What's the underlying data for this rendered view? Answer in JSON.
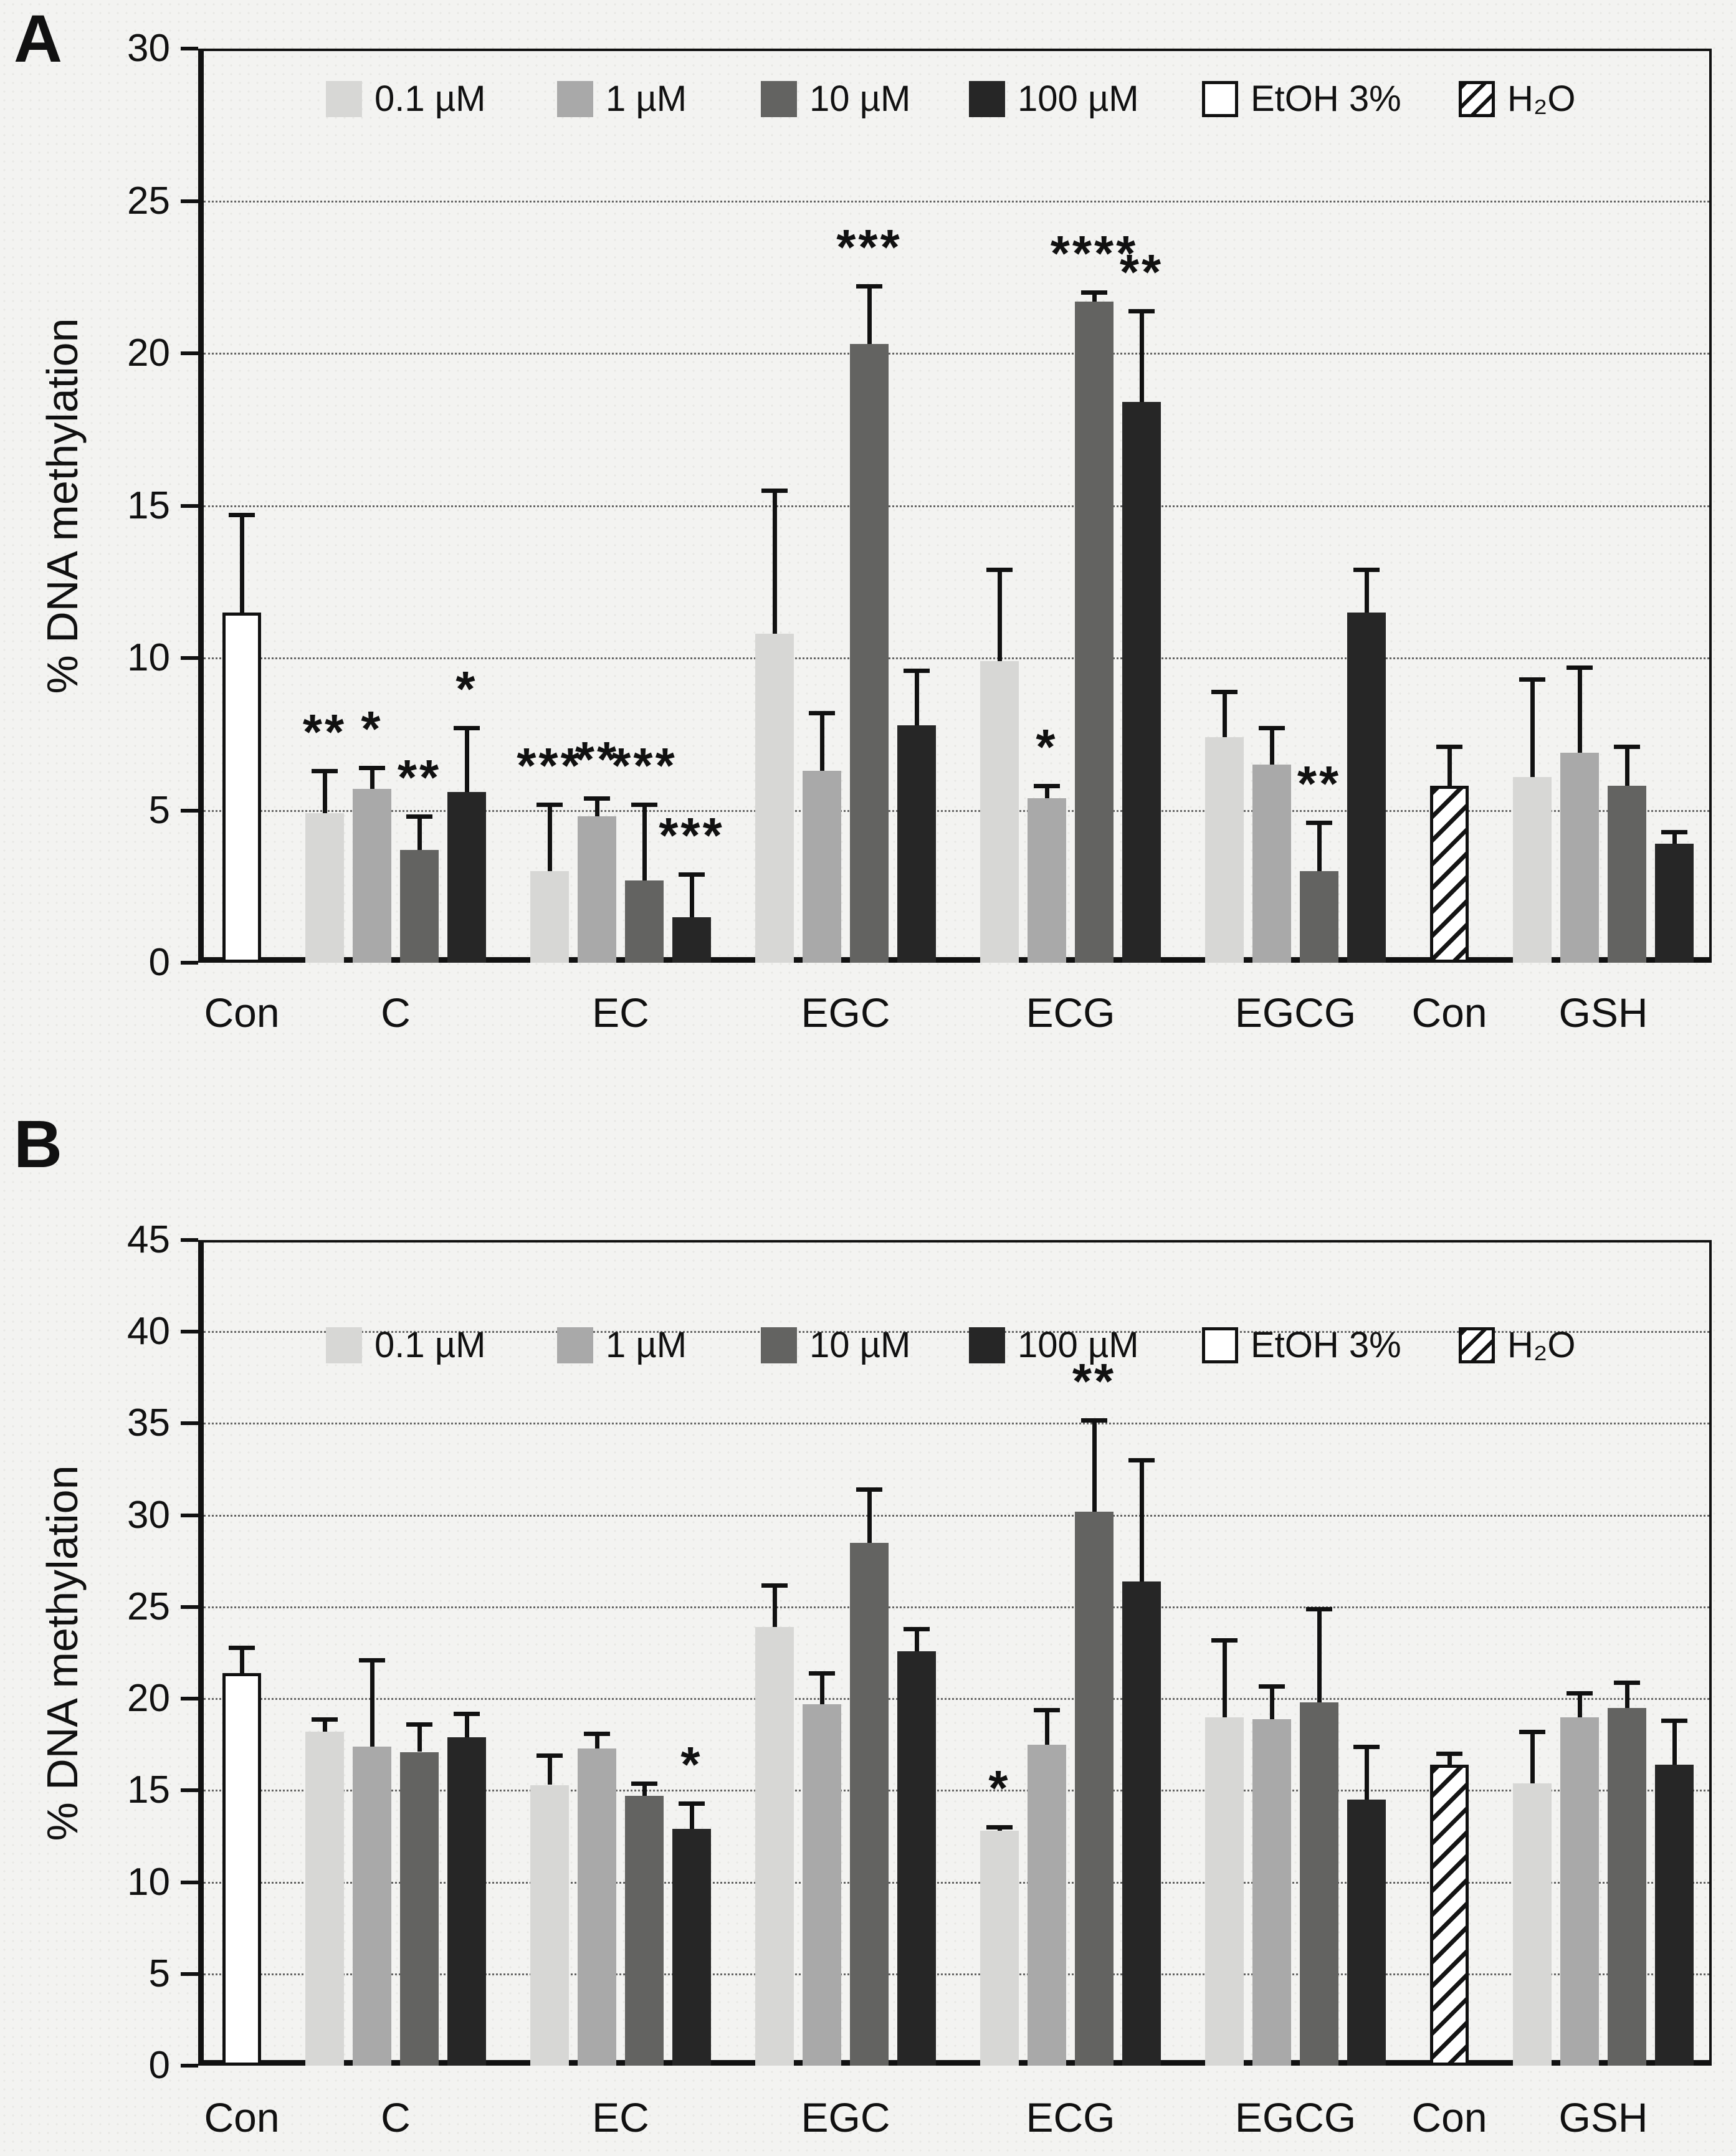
{
  "figure": {
    "background": "#f3f3f1",
    "panel_a_letter": "A",
    "panel_b_letter": "B",
    "ylabel": "% DNA methylation"
  },
  "chart_data": {
    "type": "bar",
    "ylabel": "% DNA methylation",
    "grid": "dotted horizontal",
    "legend_position": "top inside plot",
    "legend": [
      {
        "label": "0.1 µM",
        "style": "fill",
        "color": "#d7d7d5"
      },
      {
        "label": "1 µM",
        "style": "fill",
        "color": "#a9a9a9"
      },
      {
        "label": "10 µM",
        "style": "fill",
        "color": "#636361"
      },
      {
        "label": "100 µM",
        "style": "fill",
        "color": "#262626"
      },
      {
        "label": "EtOH 3%",
        "style": "open",
        "color": "#ffffff"
      },
      {
        "label": "H₂O",
        "style": "hatch",
        "color": "#ffffff"
      }
    ],
    "panels": [
      {
        "label": "A",
        "ylim": [
          0,
          30
        ],
        "ystep": 5,
        "yticks": [
          "0",
          "5",
          "10",
          "15",
          "20",
          "25",
          "30"
        ],
        "groups": [
          {
            "label": "Con",
            "bars": [
              {
                "series": "EtOH 3%",
                "value": 11.5,
                "err_top": 14.7,
                "sig": ""
              }
            ]
          },
          {
            "label": "C",
            "bars": [
              {
                "series": "0.1 µM",
                "value": 4.9,
                "err_top": 6.3,
                "sig": "**"
              },
              {
                "series": "1 µM",
                "value": 5.7,
                "err_top": 6.4,
                "sig": "*"
              },
              {
                "series": "10 µM",
                "value": 3.7,
                "err_top": 4.8,
                "sig": "**"
              },
              {
                "series": "100 µM",
                "value": 5.6,
                "err_top": 7.7,
                "sig": "*"
              }
            ]
          },
          {
            "label": "EC",
            "bars": [
              {
                "series": "0.1 µM",
                "value": 3.0,
                "err_top": 5.2,
                "sig": "***"
              },
              {
                "series": "1 µM",
                "value": 4.8,
                "err_top": 5.4,
                "sig": "**"
              },
              {
                "series": "10 µM",
                "value": 2.7,
                "err_top": 5.2,
                "sig": "***"
              },
              {
                "series": "100 µM",
                "value": 1.5,
                "err_top": 2.9,
                "sig": "***"
              }
            ]
          },
          {
            "label": "EGC",
            "bars": [
              {
                "series": "0.1 µM",
                "value": 10.8,
                "err_top": 15.5,
                "sig": ""
              },
              {
                "series": "1 µM",
                "value": 6.3,
                "err_top": 8.2,
                "sig": ""
              },
              {
                "series": "10 µM",
                "value": 20.3,
                "err_top": 22.2,
                "sig": "***"
              },
              {
                "series": "100 µM",
                "value": 7.8,
                "err_top": 9.6,
                "sig": ""
              }
            ]
          },
          {
            "label": "ECG",
            "bars": [
              {
                "series": "0.1 µM",
                "value": 9.9,
                "err_top": 12.9,
                "sig": ""
              },
              {
                "series": "1 µM",
                "value": 5.4,
                "err_top": 5.8,
                "sig": "*"
              },
              {
                "series": "10 µM",
                "value": 21.7,
                "err_top": 22.0,
                "sig": "****"
              },
              {
                "series": "100 µM",
                "value": 18.4,
                "err_top": 21.4,
                "sig": "**"
              }
            ]
          },
          {
            "label": "EGCG",
            "bars": [
              {
                "series": "0.1 µM",
                "value": 7.4,
                "err_top": 8.9,
                "sig": ""
              },
              {
                "series": "1 µM",
                "value": 6.5,
                "err_top": 7.7,
                "sig": ""
              },
              {
                "series": "10 µM",
                "value": 3.0,
                "err_top": 4.6,
                "sig": "**"
              },
              {
                "series": "100 µM",
                "value": 11.5,
                "err_top": 12.9,
                "sig": ""
              }
            ]
          },
          {
            "label": "Con",
            "bars": [
              {
                "series": "H₂O",
                "value": 5.8,
                "err_top": 7.1,
                "sig": ""
              }
            ]
          },
          {
            "label": "GSH",
            "bars": [
              {
                "series": "0.1 µM",
                "value": 6.1,
                "err_top": 9.3,
                "sig": ""
              },
              {
                "series": "1 µM",
                "value": 6.9,
                "err_top": 9.7,
                "sig": ""
              },
              {
                "series": "10 µM",
                "value": 5.8,
                "err_top": 7.1,
                "sig": ""
              },
              {
                "series": "100 µM",
                "value": 3.9,
                "err_top": 4.3,
                "sig": ""
              }
            ]
          }
        ]
      },
      {
        "label": "B",
        "ylim": [
          0,
          45
        ],
        "ystep": 5,
        "yticks": [
          "0",
          "5",
          "10",
          "15",
          "20",
          "25",
          "30",
          "35",
          "40",
          "45"
        ],
        "groups": [
          {
            "label": "Con",
            "bars": [
              {
                "series": "EtOH 3%",
                "value": 21.4,
                "err_top": 22.8,
                "sig": ""
              }
            ]
          },
          {
            "label": "C",
            "bars": [
              {
                "series": "0.1 µM",
                "value": 18.2,
                "err_top": 18.9,
                "sig": ""
              },
              {
                "series": "1 µM",
                "value": 17.4,
                "err_top": 22.1,
                "sig": ""
              },
              {
                "series": "10 µM",
                "value": 17.1,
                "err_top": 18.6,
                "sig": ""
              },
              {
                "series": "100 µM",
                "value": 17.9,
                "err_top": 19.2,
                "sig": ""
              }
            ]
          },
          {
            "label": "EC",
            "bars": [
              {
                "series": "0.1 µM",
                "value": 15.3,
                "err_top": 16.9,
                "sig": ""
              },
              {
                "series": "1 µM",
                "value": 17.3,
                "err_top": 18.1,
                "sig": ""
              },
              {
                "series": "10 µM",
                "value": 14.7,
                "err_top": 15.4,
                "sig": ""
              },
              {
                "series": "100 µM",
                "value": 12.9,
                "err_top": 14.3,
                "sig": "*"
              }
            ]
          },
          {
            "label": "EGC",
            "bars": [
              {
                "series": "0.1 µM",
                "value": 23.9,
                "err_top": 26.2,
                "sig": ""
              },
              {
                "series": "1 µM",
                "value": 19.7,
                "err_top": 21.4,
                "sig": ""
              },
              {
                "series": "10 µM",
                "value": 28.5,
                "err_top": 31.4,
                "sig": ""
              },
              {
                "series": "100 µM",
                "value": 22.6,
                "err_top": 23.8,
                "sig": ""
              }
            ]
          },
          {
            "label": "ECG",
            "bars": [
              {
                "series": "0.1 µM",
                "value": 12.8,
                "err_top": 13.0,
                "sig": "*"
              },
              {
                "series": "1 µM",
                "value": 17.5,
                "err_top": 19.4,
                "sig": ""
              },
              {
                "series": "10 µM",
                "value": 30.2,
                "err_top": 35.2,
                "sig": "**"
              },
              {
                "series": "100 µM",
                "value": 26.4,
                "err_top": 33.0,
                "sig": ""
              }
            ]
          },
          {
            "label": "EGCG",
            "bars": [
              {
                "series": "0.1 µM",
                "value": 19.0,
                "err_top": 23.2,
                "sig": ""
              },
              {
                "series": "1 µM",
                "value": 18.9,
                "err_top": 20.7,
                "sig": ""
              },
              {
                "series": "10 µM",
                "value": 19.8,
                "err_top": 24.9,
                "sig": ""
              },
              {
                "series": "100 µM",
                "value": 14.5,
                "err_top": 17.4,
                "sig": ""
              }
            ]
          },
          {
            "label": "Con",
            "bars": [
              {
                "series": "H₂O",
                "value": 16.4,
                "err_top": 17.0,
                "sig": ""
              }
            ]
          },
          {
            "label": "GSH",
            "bars": [
              {
                "series": "0.1 µM",
                "value": 15.4,
                "err_top": 18.2,
                "sig": ""
              },
              {
                "series": "1 µM",
                "value": 19.0,
                "err_top": 20.3,
                "sig": ""
              },
              {
                "series": "10 µM",
                "value": 19.5,
                "err_top": 20.9,
                "sig": ""
              },
              {
                "series": "100 µM",
                "value": 16.4,
                "err_top": 18.8,
                "sig": ""
              }
            ]
          }
        ]
      }
    ]
  }
}
